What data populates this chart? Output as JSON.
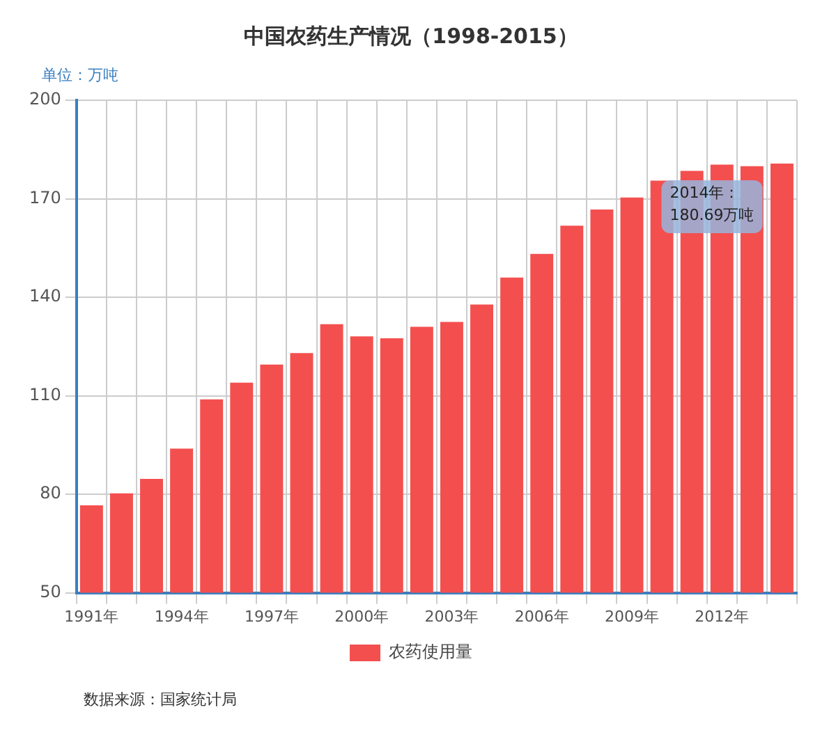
{
  "chart_data": {
    "type": "bar",
    "title": "中国农药生产情况（1998-2015）",
    "ylabel": "单位：万吨",
    "categories": [
      "1991年",
      null,
      null,
      "1994年",
      null,
      null,
      "1997年",
      null,
      null,
      "2000年",
      null,
      null,
      "2003年",
      null,
      null,
      "2006年",
      null,
      null,
      "2009年",
      null,
      null,
      "2012年",
      null,
      null
    ],
    "series": [
      {
        "name": "农药使用量",
        "color": "#f44f4f",
        "values": [
          76.6,
          80.3,
          84.7,
          93.9,
          108.9,
          114,
          119.5,
          123,
          131.8,
          128.1,
          127.5,
          131,
          132.5,
          137.8,
          146,
          153.2,
          161.8,
          166.7,
          170.4,
          175.5,
          178.5,
          180.4,
          179.9,
          180.69
        ]
      }
    ],
    "ylim": [
      50,
      200
    ],
    "yticks": [
      50,
      80,
      110,
      140,
      170,
      200
    ],
    "grid": true,
    "legend": "bottom",
    "annotations": [
      {
        "text": "2014年：\n180.69万吨",
        "y": 180.69
      },
      "数据来源：国家统计局"
    ]
  }
}
